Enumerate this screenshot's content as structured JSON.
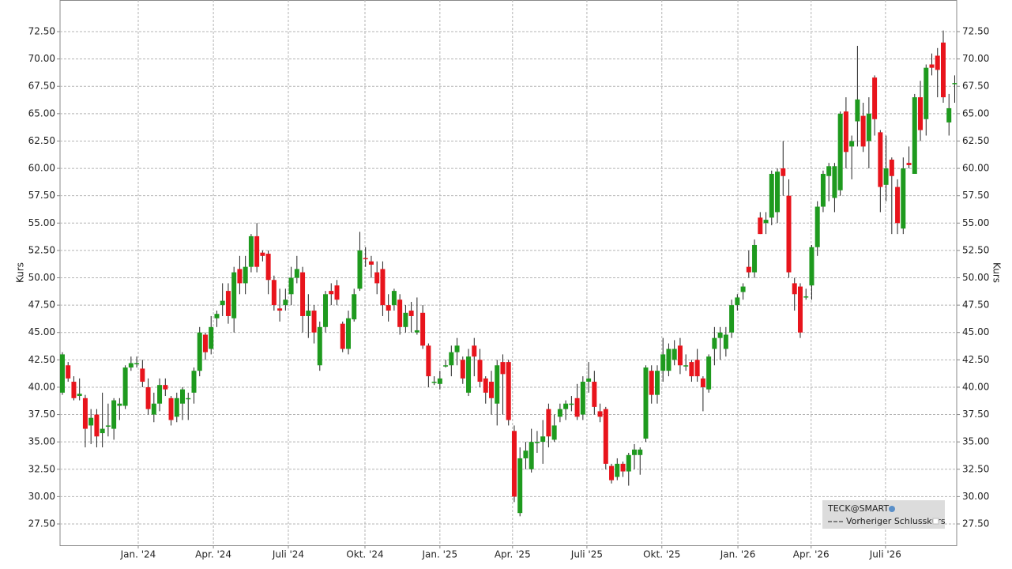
{
  "chart_data": {
    "type": "candlestick",
    "y_label": "Kurs",
    "series": [
      {
        "name": "TECK@SMART",
        "open": [
          39.5,
          42,
          40.5,
          39.2,
          39,
          36.5,
          37.5,
          35.8,
          36.5,
          36.2,
          38.3,
          38.3,
          41.8,
          42.2,
          41.7,
          40,
          37.5,
          38.5,
          40.2,
          39,
          37.3,
          38.5,
          39,
          39.5,
          41.5,
          44.8,
          43.5,
          46.3,
          47.5,
          48.8,
          46.3,
          50.8,
          49.5,
          51,
          53.8,
          52.3,
          52.2,
          49.8,
          47.2,
          47.5,
          48.5,
          50,
          50.5,
          46.5,
          47,
          42,
          45.5,
          48.8,
          49.3,
          45.8,
          43.5,
          46.2,
          49,
          51.8,
          51.5,
          50.5,
          50.8,
          47.5,
          47.5,
          48,
          45.5,
          47,
          45,
          46.8,
          43.8,
          40.5,
          40.3,
          42,
          42,
          43.2,
          42.5,
          39.5,
          43.8,
          42.5,
          40.8,
          40.5,
          38.5,
          42.3,
          42.3,
          36,
          28.5,
          33.5,
          32.5,
          35,
          35,
          38,
          35.2,
          37.3,
          38,
          38.5,
          39,
          37.5,
          40.5,
          40.5,
          37.8,
          38,
          32.8,
          31.8,
          33,
          32.3,
          33.8,
          33.8,
          35.3,
          41.5,
          39.3,
          41.5,
          41.5,
          42.5,
          43.8,
          42,
          42.3,
          42.5,
          40.8,
          39.8,
          43.5,
          44.5,
          43.5,
          45,
          47.5,
          48.7,
          51,
          50.5,
          55.5,
          55,
          55.5,
          56,
          60,
          57.5,
          49.5,
          49.2,
          48.3,
          49.3,
          52.8,
          56.5,
          59.3,
          57.3,
          58,
          65.2,
          62,
          64.3,
          64.8,
          62.5,
          68.3,
          63.3,
          58.5,
          60.8,
          58.3,
          54.5,
          60.5,
          59.5,
          66.5,
          64.5,
          69.5,
          70.3,
          71.5,
          64.2,
          67.8
        ],
        "high": [
          43.2,
          42.3,
          41,
          40.8,
          39.3,
          38,
          38,
          39.5,
          38.5,
          39,
          39,
          42,
          42.8,
          42.8,
          42.5,
          40.8,
          39.5,
          40.8,
          40.8,
          39.2,
          39.5,
          40,
          39.5,
          41.8,
          45.5,
          45,
          46.5,
          47,
          49.5,
          49.5,
          51,
          52,
          52,
          54,
          55,
          52.5,
          52.5,
          50.2,
          49,
          49,
          51,
          52,
          51,
          48.5,
          47.5,
          46,
          48.8,
          49.5,
          49.8,
          46,
          47,
          49,
          54.2,
          52.8,
          52,
          51.5,
          51.5,
          48.5,
          49,
          48.5,
          47.5,
          47.8,
          48.2,
          47.5,
          44,
          41,
          41.5,
          42.5,
          43.8,
          44.5,
          42.8,
          43.5,
          44.5,
          43.5,
          41,
          41.5,
          42.5,
          43,
          42.5,
          36.5,
          34.5,
          35,
          36.2,
          36,
          37,
          38.5,
          37.5,
          38.5,
          38.8,
          39.2,
          40.3,
          41,
          42.3,
          41.5,
          38.5,
          38.2,
          33,
          33.5,
          33.2,
          34,
          34.8,
          34.5,
          42,
          42,
          42,
          44.5,
          44,
          44.3,
          44.5,
          43,
          42.5,
          43.5,
          41,
          43,
          45.5,
          45.5,
          45.5,
          48,
          48.5,
          49.5,
          52.5,
          53.5,
          56,
          56,
          59.8,
          60,
          62.5,
          59,
          50,
          49.5,
          49,
          53,
          57,
          59.8,
          60.5,
          60.5,
          65.2,
          66.5,
          63,
          71.2,
          66,
          66.5,
          68.5,
          63.5,
          63,
          61,
          59,
          61,
          62,
          66.8,
          68,
          69.5,
          70.5,
          71,
          72.6,
          66.8,
          68.5
        ],
        "low": [
          39.3,
          40.5,
          38.8,
          38.8,
          34.5,
          34.8,
          34.5,
          34.5,
          35.5,
          35.2,
          37,
          38,
          41.5,
          41.8,
          40,
          37.5,
          36.8,
          37.8,
          39.2,
          36.5,
          36.8,
          37,
          37,
          38.5,
          41,
          42.5,
          43,
          45.5,
          46.5,
          45.8,
          45,
          48.5,
          48.5,
          50.5,
          50.5,
          51.5,
          48.5,
          47,
          46,
          47,
          47.5,
          49.5,
          45,
          44.5,
          44,
          41.5,
          45,
          47.5,
          47.5,
          43.2,
          43,
          46,
          48.8,
          51,
          50,
          48.5,
          46.5,
          46,
          47,
          44.8,
          45,
          45,
          44.8,
          43.5,
          40,
          40.2,
          39.8,
          41.8,
          41,
          42,
          40.3,
          39.2,
          41,
          40,
          38.5,
          37.5,
          36.5,
          37.5,
          36.5,
          29.5,
          28.2,
          32.5,
          32.2,
          34,
          33,
          34.5,
          35,
          36.8,
          37,
          37.8,
          37,
          37,
          39.5,
          37.5,
          36.8,
          32.5,
          31.2,
          31.5,
          31.8,
          31,
          32.5,
          32,
          35,
          38.5,
          38.5,
          40.5,
          41,
          42,
          41.2,
          41.5,
          40.5,
          40.5,
          37.8,
          39.5,
          42,
          42.5,
          42.8,
          44.5,
          47,
          48,
          50,
          50,
          54,
          54,
          54.8,
          55,
          57.5,
          50,
          47,
          44.5,
          48,
          48,
          52,
          56,
          57,
          56,
          57.5,
          60,
          59,
          62,
          61.5,
          60,
          63,
          56,
          57,
          54,
          54,
          54,
          60,
          59.5,
          62.5,
          63,
          68.5,
          66.5,
          66,
          63,
          66
        ],
        "close": [
          43,
          40.8,
          39,
          39.4,
          36.2,
          37.2,
          35.5,
          36.2,
          36.5,
          38.8,
          38.5,
          41.8,
          42.2,
          42.2,
          40.5,
          38,
          38.5,
          40.2,
          39.8,
          37,
          39,
          39.8,
          39,
          41.5,
          45,
          43.2,
          45.5,
          46.7,
          47.9,
          46.5,
          50.5,
          49.5,
          51,
          53.8,
          51,
          52,
          49.8,
          47.5,
          47,
          48,
          50,
          50.8,
          46.5,
          47,
          45,
          45.5,
          48.5,
          48.5,
          48,
          43.5,
          46.3,
          48.5,
          52.5,
          51.7,
          51.2,
          49.5,
          47.5,
          47,
          48.8,
          45.5,
          46.8,
          46.5,
          45.2,
          43.8,
          41,
          40.5,
          40.8,
          42,
          43.2,
          43.8,
          40.8,
          42.8,
          42.8,
          40.5,
          39.5,
          39,
          42,
          41.2,
          37,
          30,
          33.5,
          34.2,
          35,
          35,
          35.5,
          35.5,
          36.5,
          38,
          38.5,
          38.5,
          37.3,
          40.5,
          40.8,
          38.2,
          37.3,
          33,
          31.5,
          33,
          32.3,
          33.8,
          34.3,
          34.3,
          41.8,
          39.3,
          41.5,
          43,
          43.5,
          43.5,
          42,
          42,
          41,
          41,
          40,
          42.8,
          44.5,
          45,
          44.8,
          47.5,
          48.2,
          49.2,
          50.5,
          53,
          54,
          55.3,
          59.5,
          59.7,
          59.3,
          50.5,
          48.5,
          45,
          48.3,
          52.8,
          56.5,
          59.5,
          60.2,
          60.2,
          65,
          61.5,
          62.5,
          66.3,
          62,
          65,
          64.5,
          58.3,
          60,
          59.3,
          55,
          60,
          60.3,
          66.5,
          63.5,
          69.2,
          69.2,
          69,
          66.5,
          65.5,
          67.8
        ]
      }
    ],
    "legend_extra": "Vorheriger Schlusskurs",
    "up_color": "#1e9a1e",
    "down_color": "#e8141c",
    "xlim": [
      -0.41,
      156.35
    ],
    "xticks": [
      {
        "value": 13.26,
        "label": "Jan. '24"
      },
      {
        "value": 26.4,
        "label": "Apr. '24"
      },
      {
        "value": 39.5,
        "label": "Juli '24"
      },
      {
        "value": 52.9,
        "label": "Okt. '24"
      },
      {
        "value": 66.0,
        "label": "Jan. '25"
      },
      {
        "value": 78.7,
        "label": "Apr. '25"
      },
      {
        "value": 91.7,
        "label": "Juli '25"
      },
      {
        "value": 104.8,
        "label": "Okt. '25"
      },
      {
        "value": 118.1,
        "label": "Jan. '26"
      },
      {
        "value": 130.9,
        "label": "Apr. '26"
      },
      {
        "value": 143.9,
        "label": "Juli '26"
      }
    ],
    "ylim": [
      25.55,
      75.39
    ],
    "yticks": [
      {
        "value": 27.5,
        "label": "27.50"
      },
      {
        "value": 30,
        "label": "30.00"
      },
      {
        "value": 32.5,
        "label": "32.50"
      },
      {
        "value": 35,
        "label": "35.00"
      },
      {
        "value": 37.5,
        "label": "37.50"
      },
      {
        "value": 40,
        "label": "40.00"
      },
      {
        "value": 42.5,
        "label": "42.50"
      },
      {
        "value": 45,
        "label": "45.00"
      },
      {
        "value": 47.5,
        "label": "47.50"
      },
      {
        "value": 50,
        "label": "50.00"
      },
      {
        "value": 52.5,
        "label": "52.50"
      },
      {
        "value": 55,
        "label": "55.00"
      },
      {
        "value": 57.5,
        "label": "57.50"
      },
      {
        "value": 60,
        "label": "60.00"
      },
      {
        "value": 62.5,
        "label": "62.50"
      },
      {
        "value": 65,
        "label": "65.00"
      },
      {
        "value": 67.5,
        "label": "67.50"
      },
      {
        "value": 70,
        "label": "70.00"
      },
      {
        "value": 72.5,
        "label": "72.50"
      }
    ],
    "grid": true
  }
}
